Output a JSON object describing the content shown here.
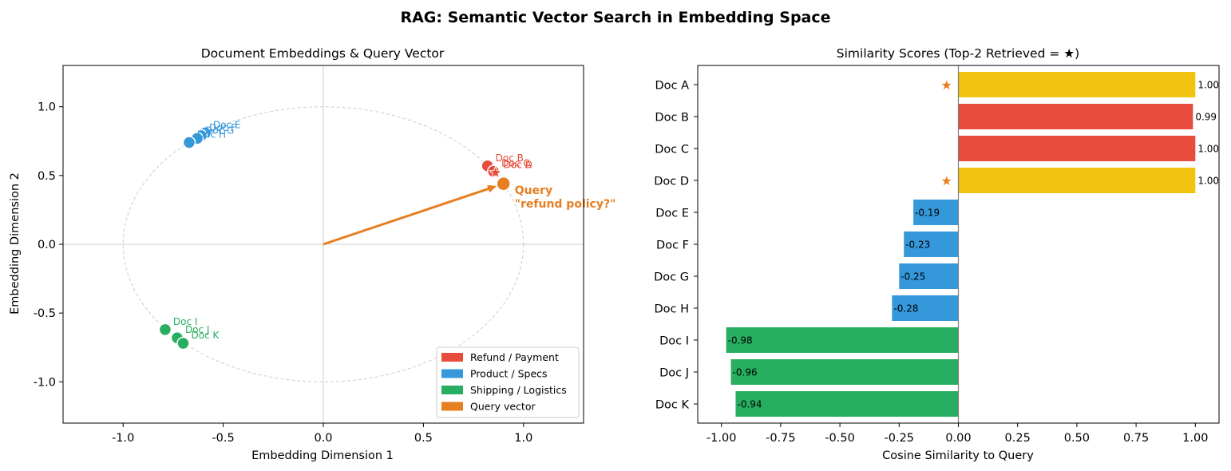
{
  "suptitle": "RAG: Semantic Vector Search in Embedding Space",
  "colors": {
    "refund": "#e74c3c",
    "product": "#3498db",
    "shipping": "#27ae60",
    "query": "#e67e22",
    "retrieved": "#f1c40f",
    "star": "#e67e22",
    "grid": "#cccccc",
    "circle": "#cccccc"
  },
  "chart_data": [
    {
      "type": "scatter",
      "title": "Document Embeddings & Query Vector",
      "xlabel": "Embedding Dimension 1",
      "ylabel": "Embedding Dimension 2",
      "xlim": [
        -1.3,
        1.3
      ],
      "ylim": [
        -1.3,
        1.3
      ],
      "xticks": [
        -1.0,
        -0.5,
        0.0,
        0.5,
        1.0
      ],
      "yticks": [
        -1.0,
        -0.5,
        0.0,
        0.5,
        1.0
      ],
      "xtick_labels": [
        "-1.0",
        "-0.5",
        "0.0",
        "0.5",
        "1.0"
      ],
      "ytick_labels": [
        "-1.0",
        "-0.5",
        "0.0",
        "0.5",
        "1.0"
      ],
      "unit_circle": true,
      "grid": false,
      "legend_position": "lower-right",
      "legend": [
        {
          "label": "Refund / Payment",
          "color": "#e74c3c"
        },
        {
          "label": "Product / Specs",
          "color": "#3498db"
        },
        {
          "label": "Shipping / Logistics",
          "color": "#27ae60"
        },
        {
          "label": "Query vector",
          "color": "#e67e22"
        }
      ],
      "points": [
        {
          "label": "Doc A",
          "x": 0.86,
          "y": 0.52,
          "group": "refund",
          "retrieved": true
        },
        {
          "label": "Doc B",
          "x": 0.82,
          "y": 0.57,
          "group": "refund",
          "retrieved": false
        },
        {
          "label": "Doc C",
          "x": 0.85,
          "y": 0.53,
          "group": "refund",
          "retrieved": false
        },
        {
          "label": "Doc D",
          "x": 0.86,
          "y": 0.52,
          "group": "refund",
          "retrieved": true
        },
        {
          "label": "Doc E",
          "x": -0.59,
          "y": 0.81,
          "group": "product",
          "retrieved": false
        },
        {
          "label": "Doc F",
          "x": -0.61,
          "y": 0.79,
          "group": "product",
          "retrieved": false
        },
        {
          "label": "Doc G",
          "x": -0.63,
          "y": 0.77,
          "group": "product",
          "retrieved": false
        },
        {
          "label": "Doc H",
          "x": -0.67,
          "y": 0.74,
          "group": "product",
          "retrieved": false
        },
        {
          "label": "Doc I",
          "x": -0.79,
          "y": -0.62,
          "group": "shipping",
          "retrieved": false
        },
        {
          "label": "Doc J",
          "x": -0.73,
          "y": -0.68,
          "group": "shipping",
          "retrieved": false
        },
        {
          "label": "Doc K",
          "x": -0.7,
          "y": -0.72,
          "group": "shipping",
          "retrieved": false
        }
      ],
      "query": {
        "x": 0.9,
        "y": 0.44,
        "label_line1": "Query",
        "label_line2": "\"refund policy?\""
      }
    },
    {
      "type": "bar",
      "orientation": "horizontal",
      "title": "Similarity Scores (Top-2 Retrieved = ★)",
      "xlabel": "Cosine Similarity to Query",
      "ylabel": "",
      "xlim": [
        -1.1,
        1.1
      ],
      "xticks": [
        -1.0,
        -0.75,
        -0.5,
        -0.25,
        0.0,
        0.25,
        0.5,
        0.75,
        1.0
      ],
      "xtick_labels": [
        "-1.00",
        "-0.75",
        "-0.50",
        "-0.25",
        "0.00",
        "0.25",
        "0.50",
        "0.75",
        "1.00"
      ],
      "star_symbol": "★",
      "categories": [
        "Doc A",
        "Doc B",
        "Doc C",
        "Doc D",
        "Doc E",
        "Doc F",
        "Doc G",
        "Doc H",
        "Doc I",
        "Doc J",
        "Doc K"
      ],
      "values": [
        1.0,
        0.99,
        1.0,
        1.0,
        -0.19,
        -0.23,
        -0.25,
        -0.28,
        -0.98,
        -0.96,
        -0.94
      ],
      "value_labels": [
        "1.00",
        "0.99",
        "1.00",
        "1.00",
        "-0.19",
        "-0.23",
        "-0.25",
        "-0.28",
        "-0.98",
        "-0.96",
        "-0.94"
      ],
      "groups": [
        "refund",
        "refund",
        "refund",
        "refund",
        "product",
        "product",
        "product",
        "product",
        "shipping",
        "shipping",
        "shipping"
      ],
      "retrieved": [
        true,
        false,
        false,
        true,
        false,
        false,
        false,
        false,
        false,
        false,
        false
      ]
    }
  ]
}
